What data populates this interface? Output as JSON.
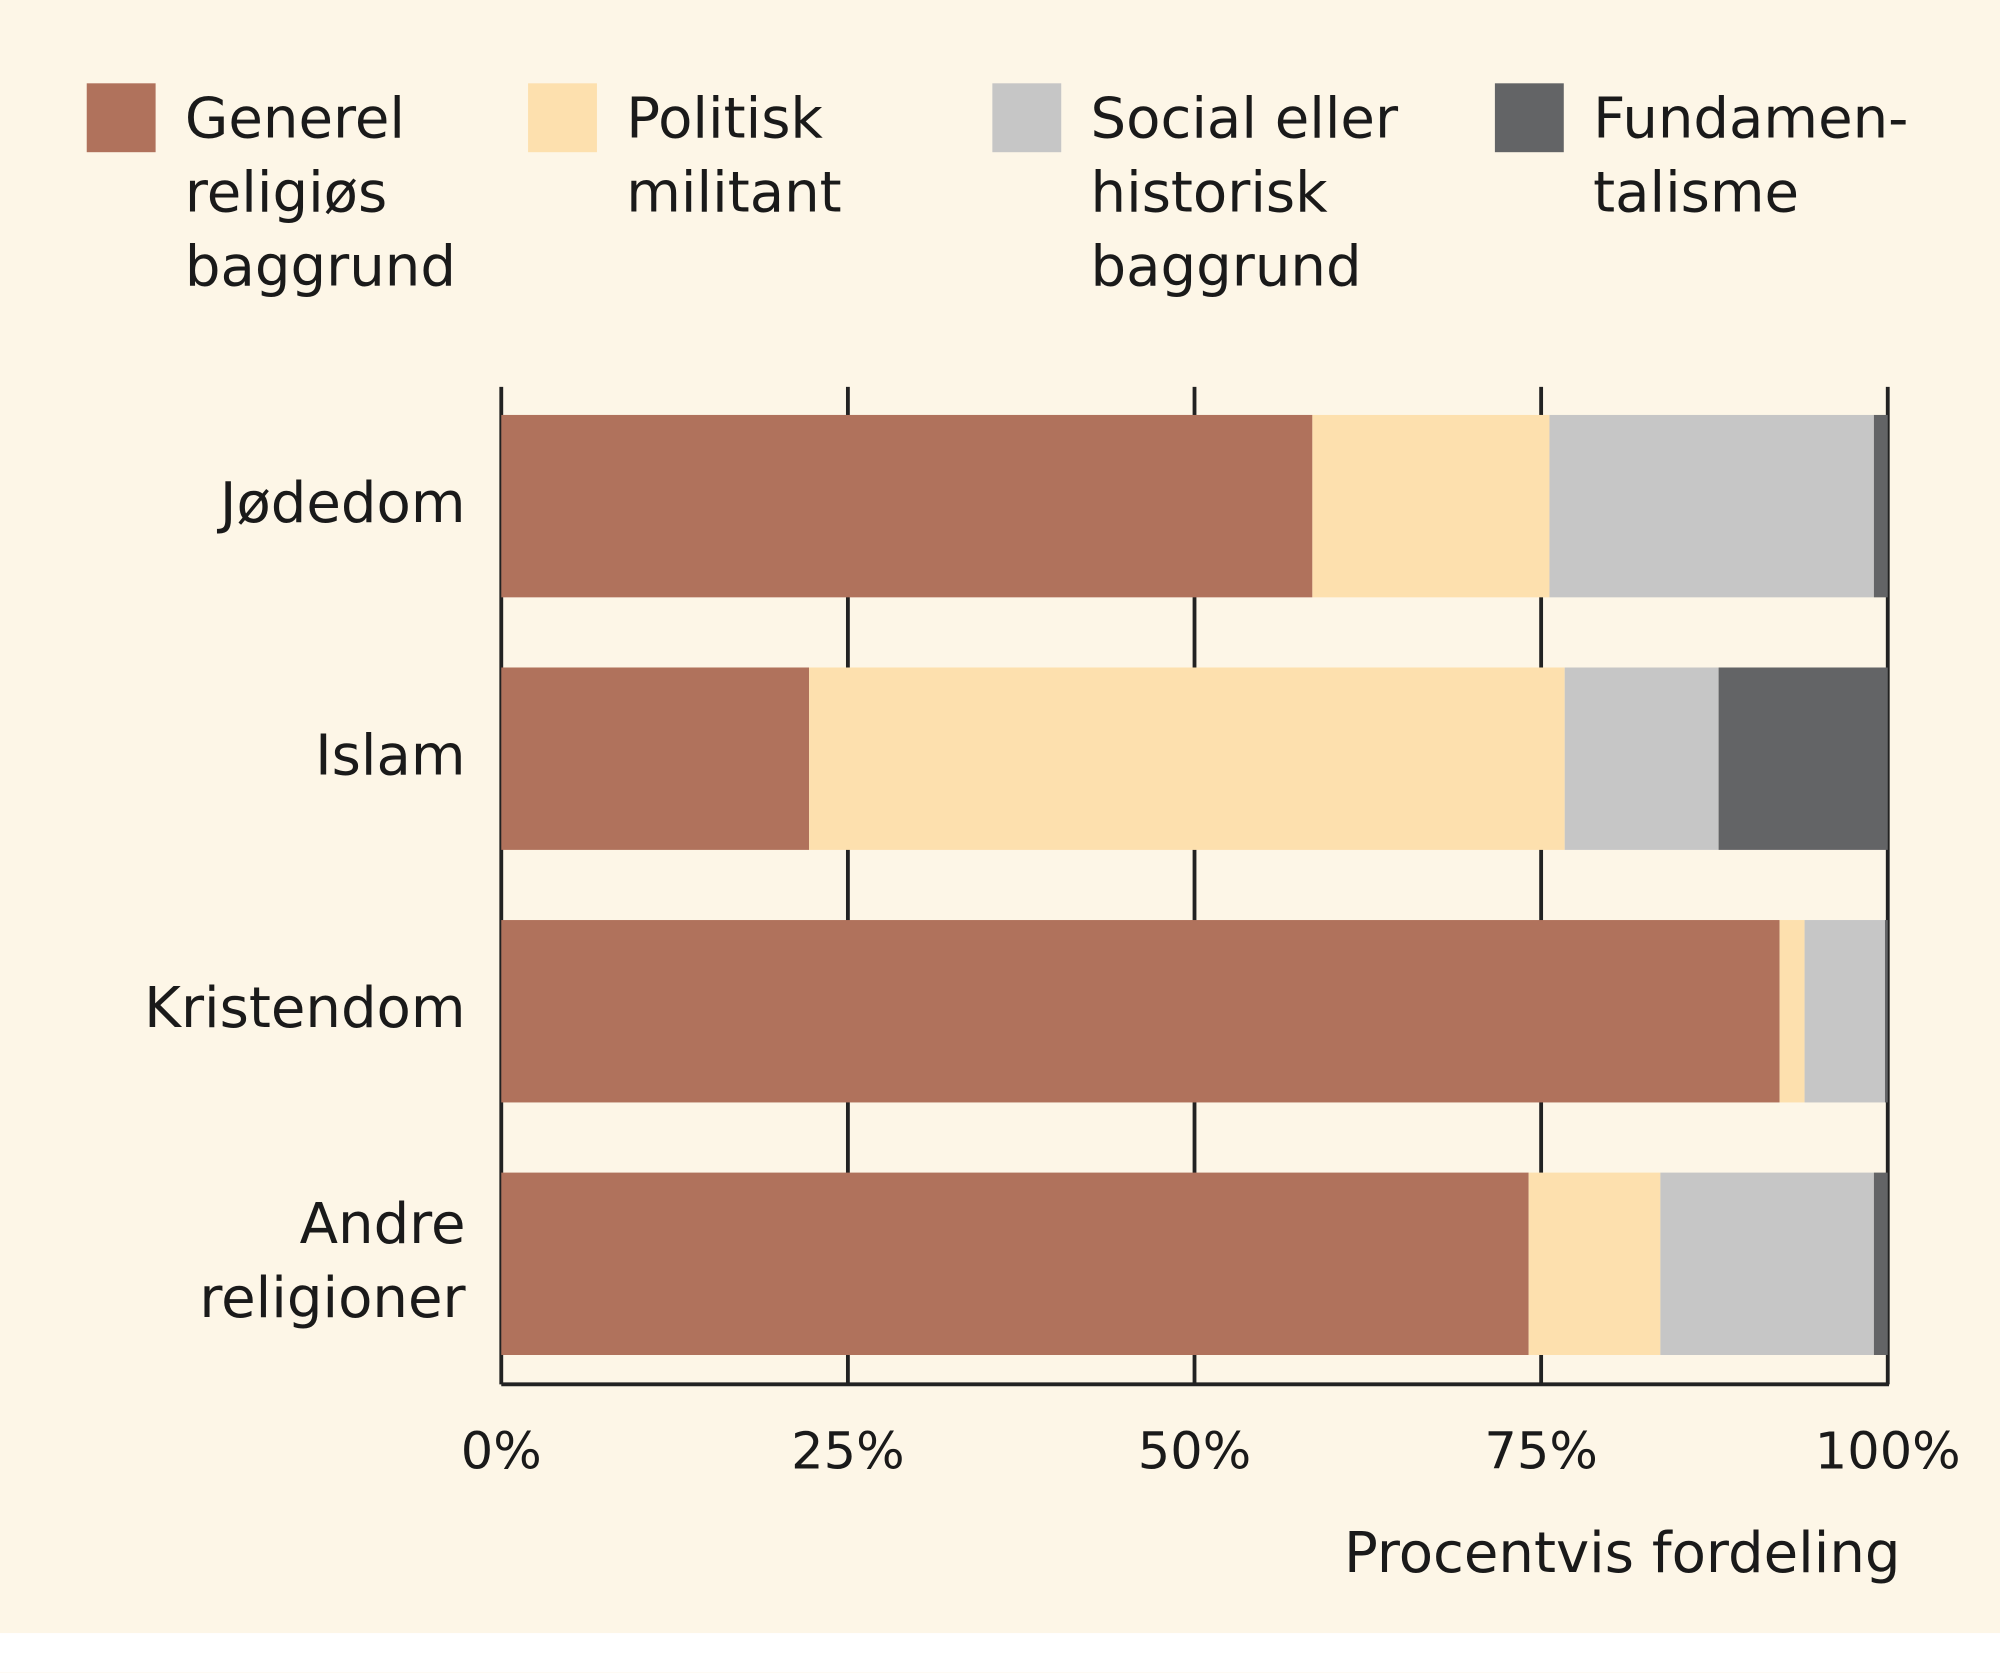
{
  "chart_data": {
    "type": "stacked-bar-horizontal",
    "categories": [
      "Jødedom",
      "Islam",
      "Kristendom",
      "Andre\nreligioner"
    ],
    "series": [
      {
        "name": "Generel\nreligiøs\nbaggrund",
        "color": "#b0725c",
        "values": [
          58.5,
          22.2,
          92.2,
          74.1
        ]
      },
      {
        "name": "Politisk\nmilitant",
        "color": "#fde0ae",
        "values": [
          17.1,
          54.5,
          1.8,
          9.5
        ]
      },
      {
        "name": "Social eller\nhistorisk\nbaggrund",
        "color": "#c6c6c6",
        "values": [
          23.4,
          11.1,
          5.8,
          15.4
        ]
      },
      {
        "name": "Fundamen-\ntalisme",
        "color": "#636466",
        "values": [
          1.0,
          12.2,
          0.2,
          1.0
        ]
      }
    ],
    "xlabel": "Procentvis fordeling",
    "xlim": [
      0,
      100
    ],
    "xticks": [
      {
        "value": 0,
        "label": "0%"
      },
      {
        "value": 25,
        "label": "25%"
      },
      {
        "value": 50,
        "label": "50%"
      },
      {
        "value": 75,
        "label": "75%"
      },
      {
        "value": 100,
        "label": "100%"
      }
    ],
    "grid": true,
    "legend": "top"
  }
}
